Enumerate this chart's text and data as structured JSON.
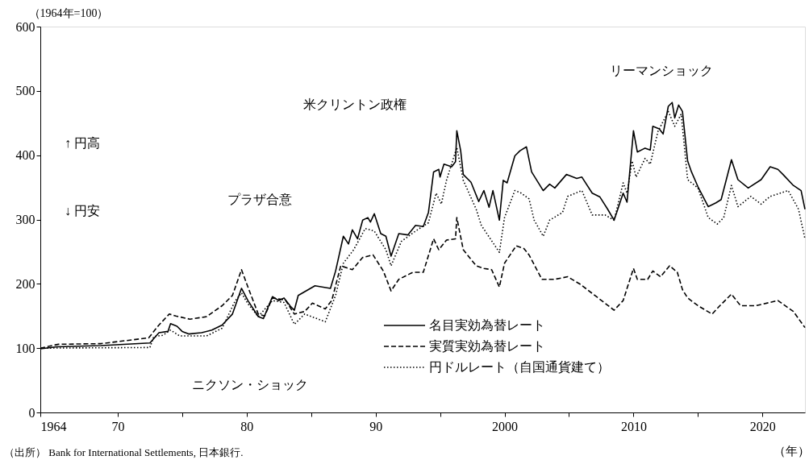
{
  "chart_data": {
    "type": "line",
    "ylabel": "（1964年=100）",
    "xlabel": "（年）",
    "xlim": [
      1964,
      2023.3
    ],
    "xticks": [
      1964,
      {
        "value": 1970,
        "label": "70"
      },
      {
        "value": 1975,
        "label": null
      },
      {
        "value": 1980,
        "label": "80"
      },
      {
        "value": 1985,
        "label": null
      },
      {
        "value": 1990,
        "label": "90"
      },
      {
        "value": 1995,
        "label": null
      },
      {
        "value": 2000,
        "label": "2000"
      },
      {
        "value": 2005,
        "label": null
      },
      {
        "value": 2010,
        "label": "2010"
      },
      {
        "value": 2015,
        "label": null
      },
      {
        "value": 2020,
        "label": "2020"
      }
    ],
    "ylim": [
      0,
      600
    ],
    "yticks": [
      0,
      100,
      200,
      300,
      400,
      500,
      600
    ],
    "grid": false,
    "legend": "bottom",
    "series": [
      {
        "name": "名目実効為替レート",
        "color": "#000000",
        "line_style": "solid",
        "x": [
          1964.0,
          1965.3,
          1968.7,
          1972.5,
          1973.2,
          1973.9,
          1974.1,
          1974.6,
          1975.0,
          1975.5,
          1976.5,
          1977.3,
          1978.1,
          1978.9,
          1979.6,
          1980.1,
          1980.9,
          1981.3,
          1982.0,
          1982.5,
          1982.9,
          1983.4,
          1983.7,
          1984.0,
          1985.3,
          1986.5,
          1986.9,
          1987.5,
          1987.9,
          1988.2,
          1988.6,
          1989.0,
          1989.4,
          1989.6,
          1989.9,
          1990.4,
          1990.8,
          1991.2,
          1991.8,
          1992.5,
          1993.1,
          1993.7,
          1994.1,
          1994.5,
          1994.9,
          1995.0,
          1995.3,
          1995.9,
          1996.2,
          1996.3,
          1996.6,
          1996.8,
          1997.4,
          1998.0,
          1998.4,
          1998.8,
          1999.1,
          1999.6,
          1999.9,
          2000.2,
          2000.8,
          2001.2,
          2001.7,
          2002.1,
          2003.0,
          2003.5,
          2003.9,
          2004.8,
          2005.6,
          2006.0,
          2006.8,
          2007.4,
          2008.0,
          2008.5,
          2009.2,
          2009.5,
          2010.0,
          2010.3,
          2010.9,
          2011.3,
          2011.5,
          2012.0,
          2012.3,
          2012.7,
          2013.0,
          2013.2,
          2013.5,
          2013.8,
          2014.2,
          2014.5,
          2015.0,
          2015.8,
          2016.4,
          2016.8,
          2017.6,
          2018.1,
          2018.9,
          2019.9,
          2020.6,
          2021.2,
          2021.6,
          2022.4,
          2023.0,
          2023.3
        ],
        "values": [
          99,
          102,
          104,
          108,
          124,
          126,
          138,
          134,
          126,
          122,
          124,
          128,
          136,
          153,
          193,
          174,
          149,
          146,
          180,
          174,
          178,
          165,
          159,
          182,
          197,
          193,
          220,
          274,
          262,
          284,
          270,
          299,
          303,
          296,
          309,
          278,
          274,
          243,
          278,
          276,
          291,
          289,
          311,
          374,
          378,
          366,
          386,
          382,
          390,
          438,
          407,
          370,
          358,
          328,
          345,
          319,
          345,
          299,
          361,
          357,
          399,
          407,
          413,
          374,
          345,
          355,
          349,
          370,
          364,
          366,
          341,
          335,
          316,
          299,
          341,
          327,
          438,
          405,
          411,
          408,
          445,
          441,
          433,
          476,
          482,
          458,
          478,
          468,
          391,
          374,
          351,
          320,
          326,
          331,
          393,
          362,
          349,
          362,
          382,
          378,
          370,
          353,
          345,
          316
        ]
      },
      {
        "name": "実質実効為替レート",
        "color": "#000000",
        "line_style": "dashed",
        "x": [
          1964.0,
          1965.4,
          1968.7,
          1972.4,
          1973.2,
          1974.0,
          1974.5,
          1975.6,
          1976.9,
          1978.1,
          1978.9,
          1979.6,
          1980.1,
          1980.9,
          1981.4,
          1982.0,
          1983.0,
          1983.7,
          1984.5,
          1985.1,
          1986.1,
          1986.6,
          1987.3,
          1988.2,
          1989.0,
          1989.8,
          1990.6,
          1991.2,
          1991.8,
          1992.9,
          1993.7,
          1994.5,
          1994.9,
          1995.5,
          1996.2,
          1996.3,
          1996.8,
          1997.8,
          1998.4,
          1999.0,
          1999.6,
          2000.0,
          2000.9,
          2001.5,
          2001.9,
          2002.9,
          2003.9,
          2004.9,
          2005.9,
          2007.0,
          2008.5,
          2009.2,
          2010.0,
          2010.3,
          2011.1,
          2011.5,
          2012.1,
          2012.8,
          2013.4,
          2013.8,
          2014.2,
          2015.0,
          2016.1,
          2016.7,
          2017.6,
          2018.3,
          2019.5,
          2021.2,
          2022.4,
          2023.3
        ],
        "values": [
          100,
          106,
          107,
          116,
          136,
          153,
          150,
          145,
          149,
          166,
          182,
          222,
          195,
          153,
          150,
          178,
          175,
          153,
          157,
          170,
          161,
          174,
          228,
          222,
          241,
          245,
          220,
          189,
          207,
          218,
          218,
          270,
          253,
          268,
          270,
          303,
          253,
          228,
          224,
          222,
          195,
          232,
          259,
          255,
          245,
          207,
          207,
          211,
          199,
          182,
          159,
          174,
          224,
          207,
          207,
          220,
          211,
          228,
          218,
          191,
          178,
          166,
          153,
          166,
          184,
          166,
          166,
          174,
          157,
          132
        ]
      },
      {
        "name": "円ドルレート（自国通貨建て）",
        "color": "#000000",
        "line_style": "dotted",
        "x": [
          1964.0,
          1972.5,
          1972.8,
          1973.5,
          1974.1,
          1974.8,
          1976.9,
          1978.1,
          1979.1,
          1979.6,
          1980.1,
          1980.9,
          1982.0,
          1982.9,
          1983.7,
          1984.5,
          1986.1,
          1986.9,
          1987.5,
          1988.3,
          1989.2,
          1989.9,
          1990.8,
          1991.2,
          1992.0,
          1993.1,
          1994.1,
          1994.7,
          1995.1,
          1995.5,
          1996.3,
          1996.8,
          1997.8,
          1998.2,
          1999.6,
          2000.0,
          2000.8,
          2001.3,
          2001.9,
          2002.3,
          2003.0,
          2003.5,
          2004.5,
          2004.9,
          2006.0,
          2006.8,
          2007.8,
          2008.5,
          2009.2,
          2009.5,
          2009.9,
          2010.2,
          2010.9,
          2011.3,
          2011.9,
          2012.7,
          2013.2,
          2013.7,
          2014.2,
          2015.0,
          2015.8,
          2016.5,
          2017.0,
          2017.6,
          2018.1,
          2019.1,
          2019.9,
          2020.6,
          2022.0,
          2022.8,
          2023.3
        ],
        "values": [
          100,
          101,
          118,
          120,
          128,
          119,
          119,
          131,
          173,
          186,
          169,
          149,
          174,
          171,
          137,
          153,
          141,
          182,
          232,
          253,
          286,
          282,
          253,
          228,
          266,
          282,
          295,
          341,
          324,
          361,
          412,
          361,
          316,
          291,
          249,
          303,
          345,
          341,
          332,
          299,
          274,
          299,
          311,
          336,
          345,
          307,
          307,
          299,
          357,
          341,
          391,
          366,
          395,
          386,
          437,
          468,
          445,
          464,
          362,
          349,
          303,
          293,
          303,
          353,
          320,
          336,
          324,
          336,
          345,
          316,
          270
        ]
      }
    ],
    "annotations": [
      "↑ 円高",
      "↓ 円安",
      "プラザ合意",
      "米クリントン政権",
      "リーマンショック",
      "ニクソン・ショック",
      "（出所） Bank for International Settlements, 日本銀行."
    ]
  }
}
